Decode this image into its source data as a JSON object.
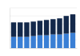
{
  "chart_data": {
    "type": "bar",
    "stacked": true,
    "grid": true,
    "tick_labels": false,
    "categories": [
      null,
      null,
      null,
      null,
      null,
      null,
      null,
      null,
      null,
      null
    ],
    "ylim": [
      0,
      50
    ],
    "yticks": [
      0,
      10,
      20,
      30,
      40,
      50
    ],
    "series": [
      {
        "color": "#3a7fd5",
        "values": [
          14,
          14,
          14,
          15,
          16,
          16,
          17,
          17,
          18,
          19
        ]
      },
      {
        "color": "#13284a",
        "values": [
          18,
          18,
          18,
          18,
          18,
          19,
          19,
          20,
          22,
          23
        ]
      }
    ]
  }
}
